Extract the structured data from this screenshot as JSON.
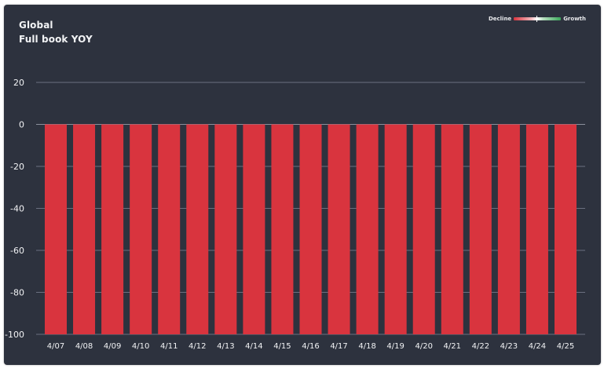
{
  "header": {
    "title": "Global",
    "subtitle": "Full book YOY"
  },
  "legend": {
    "left_label": "Decline",
    "right_label": "Growth"
  },
  "colors": {
    "background": "#2d323e",
    "bar": "#d9343e",
    "grid": "#6b7080",
    "text": "#f2f3f5"
  },
  "chart_data": {
    "type": "bar",
    "title": "Global",
    "subtitle": "Full book YOY",
    "categories": [
      "4/07",
      "4/08",
      "4/09",
      "4/10",
      "4/11",
      "4/12",
      "4/13",
      "4/14",
      "4/15",
      "4/16",
      "4/17",
      "4/18",
      "4/19",
      "4/20",
      "4/21",
      "4/22",
      "4/23",
      "4/24",
      "4/25"
    ],
    "values": [
      -100,
      -100,
      -100,
      -100,
      -100,
      -100,
      -100,
      -100,
      -100,
      -100,
      -100,
      -100,
      -100,
      -100,
      -100,
      -100,
      -100,
      -100,
      -100
    ],
    "ylim": [
      -100,
      20
    ],
    "yticks": [
      20,
      0,
      -20,
      -40,
      -60,
      -80,
      -100
    ],
    "grid": true,
    "legend_position": "top-right",
    "xlabel": "",
    "ylabel": ""
  }
}
